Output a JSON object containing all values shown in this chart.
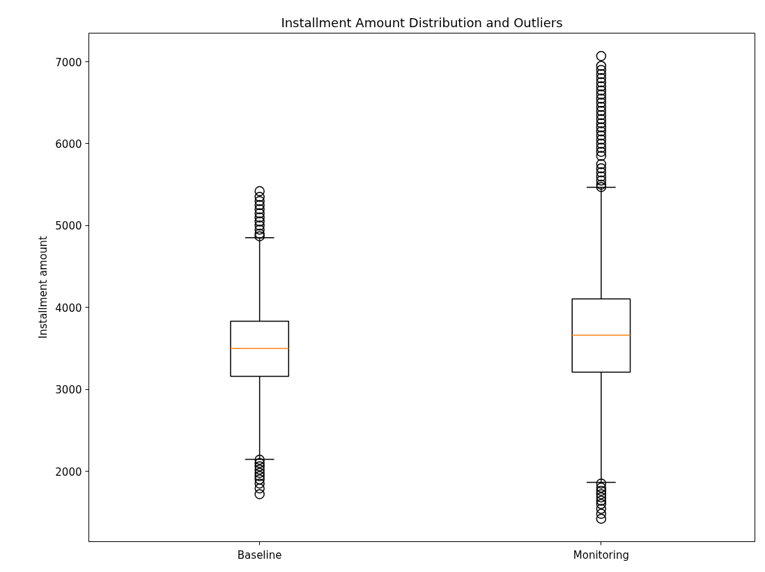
{
  "chart_data": {
    "type": "box",
    "title": "Installment Amount Distribution and Outliers",
    "ylabel": "Installment amount",
    "categories": [
      "Baseline",
      "Monitoring"
    ],
    "boxes": [
      {
        "low": 2145,
        "q1": 3158,
        "median": 3499,
        "q3": 3831,
        "high": 4853,
        "outliers": [
          5420,
          5350,
          5300,
          5250,
          5200,
          5150,
          5100,
          5050,
          5000,
          4950,
          4900,
          4870,
          2140,
          2100,
          2060,
          2020,
          1980,
          1940,
          1900,
          1850,
          1790,
          1720
        ]
      },
      {
        "low": 1864,
        "q1": 3210,
        "median": 3661,
        "q3": 4104,
        "high": 5467,
        "outliers": [
          7070,
          6950,
          6900,
          6850,
          6800,
          6750,
          6700,
          6650,
          6600,
          6550,
          6500,
          6450,
          6400,
          6350,
          6300,
          6250,
          6200,
          6150,
          6100,
          6050,
          6000,
          5950,
          5900,
          5850,
          5750,
          5700,
          5650,
          5600,
          5550,
          5500,
          5470,
          1850,
          1800,
          1760,
          1720,
          1680,
          1640,
          1600,
          1540,
          1480,
          1420
        ]
      }
    ],
    "color": "#ffffff",
    "ylim": [
      1140,
      7350
    ],
    "yticks": [
      2000,
      3000,
      4000,
      5000,
      6000,
      7000
    ],
    "grid": false
  }
}
